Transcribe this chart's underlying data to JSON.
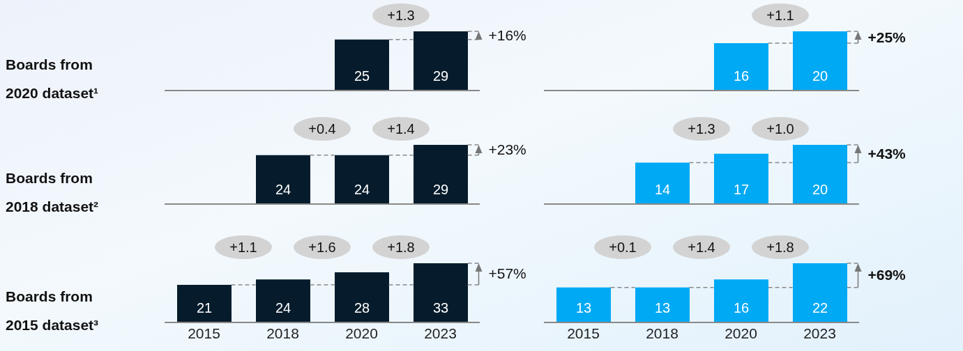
{
  "chart_data": [
    {
      "type": "bar",
      "title": "Boards from 2020 dataset¹",
      "categories": [
        "2015",
        "2018",
        "2020",
        "2023"
      ],
      "values": [
        null,
        null,
        25,
        29
      ],
      "color": "#061c2c",
      "data_labels": true,
      "tick_labels": false,
      "annotations": [
        "+1.3",
        "+16%"
      ]
    },
    {
      "type": "bar",
      "categories": [
        "2015",
        "2018",
        "2020",
        "2023"
      ],
      "values": [
        null,
        null,
        16,
        20
      ],
      "color": "#00a9f4",
      "data_labels": true,
      "tick_labels": false,
      "annotations": [
        "+1.1",
        "+25%"
      ]
    },
    {
      "type": "bar",
      "title": "Boards from 2018 dataset²",
      "categories": [
        "2015",
        "2018",
        "2020",
        "2023"
      ],
      "values": [
        null,
        24,
        24,
        29
      ],
      "color": "#061c2c",
      "data_labels": true,
      "tick_labels": false,
      "annotations": [
        "+0.4",
        "+1.4",
        "+23%"
      ]
    },
    {
      "type": "bar",
      "categories": [
        "2015",
        "2018",
        "2020",
        "2023"
      ],
      "values": [
        null,
        14,
        17,
        20
      ],
      "color": "#00a9f4",
      "data_labels": true,
      "tick_labels": false,
      "annotations": [
        "+1.3",
        "+1.0",
        "+43%"
      ]
    },
    {
      "type": "bar",
      "title": "Boards from 2015 dataset³",
      "categories": [
        "2015",
        "2018",
        "2020",
        "2023"
      ],
      "values": [
        21,
        24,
        28,
        33
      ],
      "color": "#061c2c",
      "data_labels": true,
      "annotations": [
        "+1.1",
        "+1.6",
        "+1.8",
        "+57%"
      ]
    },
    {
      "type": "bar",
      "categories": [
        "2015",
        "2018",
        "2020",
        "2023"
      ],
      "values": [
        13,
        13,
        16,
        22
      ],
      "color": "#00a9f4",
      "data_labels": true,
      "annotations": [
        "+0.1",
        "+1.4",
        "+1.8",
        "+69%"
      ]
    }
  ]
}
